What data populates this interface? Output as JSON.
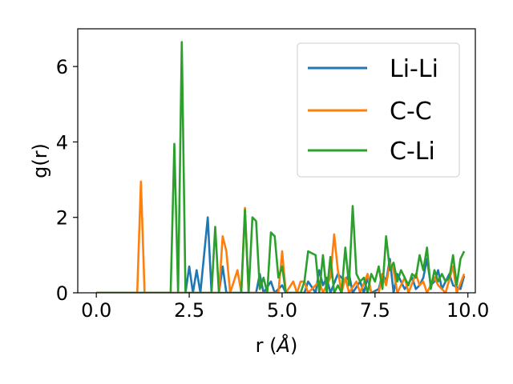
{
  "chart_data": {
    "type": "line",
    "xlabel_main": "r (",
    "xlabel_unit": "Å",
    "xlabel_end": ")",
    "ylabel": "g(r)",
    "xlim": [
      -0.5,
      10.2
    ],
    "ylim": [
      0,
      7
    ],
    "xticks": [
      0.0,
      2.5,
      5.0,
      7.5,
      10.0
    ],
    "xtick_labels": [
      "0.0",
      "2.5",
      "5.0",
      "7.5",
      "10.0"
    ],
    "yticks": [
      0,
      2,
      4,
      6
    ],
    "ytick_labels": [
      "0",
      "2",
      "4",
      "6"
    ],
    "grid": false,
    "legend_position": "upper right",
    "series": [
      {
        "name": "Li-Li",
        "color": "#1f77b4",
        "points": [
          [
            0,
            0
          ],
          [
            2.4,
            0
          ],
          [
            2.5,
            0.7
          ],
          [
            2.6,
            0
          ],
          [
            2.7,
            0.6
          ],
          [
            2.8,
            0
          ],
          [
            3.0,
            2.0
          ],
          [
            3.1,
            0
          ],
          [
            3.3,
            0
          ],
          [
            3.4,
            0.7
          ],
          [
            3.5,
            0
          ],
          [
            4.3,
            0
          ],
          [
            4.4,
            0.5
          ],
          [
            4.5,
            0
          ],
          [
            4.7,
            0.3
          ],
          [
            4.8,
            0
          ],
          [
            5.0,
            0.2
          ],
          [
            5.1,
            0
          ],
          [
            5.6,
            0
          ],
          [
            5.7,
            0.3
          ],
          [
            5.9,
            0
          ],
          [
            6.0,
            0.6
          ],
          [
            6.1,
            0.2
          ],
          [
            6.2,
            0.4
          ],
          [
            6.3,
            0
          ],
          [
            6.5,
            0.5
          ],
          [
            6.7,
            0.3
          ],
          [
            6.8,
            0.5
          ],
          [
            6.9,
            0
          ],
          [
            7.1,
            0.3
          ],
          [
            7.2,
            0
          ],
          [
            7.3,
            0.4
          ],
          [
            7.4,
            0
          ],
          [
            7.6,
            0.1
          ],
          [
            7.7,
            0.5
          ],
          [
            7.8,
            0.3
          ],
          [
            7.9,
            0.9
          ],
          [
            8.0,
            0
          ],
          [
            8.1,
            0.5
          ],
          [
            8.2,
            0.3
          ],
          [
            8.3,
            0.1
          ],
          [
            8.5,
            0.4
          ],
          [
            8.6,
            0.1
          ],
          [
            8.7,
            0.2
          ],
          [
            8.8,
            0.4
          ],
          [
            8.9,
            0.9
          ],
          [
            9.0,
            0.2
          ],
          [
            9.1,
            0.3
          ],
          [
            9.2,
            0.6
          ],
          [
            9.3,
            0.1
          ],
          [
            9.4,
            0.3
          ],
          [
            9.5,
            0.5
          ],
          [
            9.6,
            0.2
          ],
          [
            9.8,
            0.1
          ],
          [
            9.9,
            0.45
          ]
        ]
      },
      {
        "name": "C-C",
        "color": "#ff7f0e",
        "points": [
          [
            0,
            0
          ],
          [
            1.1,
            0
          ],
          [
            1.2,
            2.95
          ],
          [
            1.3,
            0
          ],
          [
            3.3,
            0
          ],
          [
            3.4,
            1.5
          ],
          [
            3.5,
            1.1
          ],
          [
            3.6,
            0
          ],
          [
            3.8,
            0.6
          ],
          [
            3.9,
            0
          ],
          [
            4.0,
            2.25
          ],
          [
            4.1,
            0
          ],
          [
            4.9,
            0
          ],
          [
            5.0,
            1.1
          ],
          [
            5.1,
            0
          ],
          [
            5.3,
            0.3
          ],
          [
            5.4,
            0
          ],
          [
            5.5,
            0.3
          ],
          [
            5.6,
            0.3
          ],
          [
            5.7,
            0
          ],
          [
            6.0,
            0.3
          ],
          [
            6.1,
            0
          ],
          [
            6.3,
            0.4
          ],
          [
            6.4,
            1.55
          ],
          [
            6.5,
            0.6
          ],
          [
            6.6,
            0
          ],
          [
            6.7,
            0.4
          ],
          [
            6.8,
            0
          ],
          [
            7.0,
            0.3
          ],
          [
            7.1,
            0
          ],
          [
            7.3,
            0.5
          ],
          [
            7.4,
            0
          ],
          [
            7.6,
            0
          ],
          [
            7.7,
            0.5
          ],
          [
            7.8,
            0.2
          ],
          [
            7.9,
            0.8
          ],
          [
            8.0,
            0.6
          ],
          [
            8.1,
            0
          ],
          [
            8.3,
            0.4
          ],
          [
            8.4,
            0
          ],
          [
            8.6,
            0.5
          ],
          [
            8.7,
            0.2
          ],
          [
            8.8,
            0.3
          ],
          [
            8.9,
            0
          ],
          [
            9.1,
            0.4
          ],
          [
            9.2,
            0.2
          ],
          [
            9.3,
            0.1
          ],
          [
            9.4,
            0
          ],
          [
            9.6,
            0.7
          ],
          [
            9.7,
            0
          ],
          [
            9.9,
            0.5
          ]
        ]
      },
      {
        "name": "C-Li",
        "color": "#2ca02c",
        "points": [
          [
            0,
            0
          ],
          [
            2.0,
            0
          ],
          [
            2.1,
            3.95
          ],
          [
            2.2,
            0
          ],
          [
            2.3,
            6.65
          ],
          [
            2.4,
            0
          ],
          [
            3.1,
            0
          ],
          [
            3.2,
            1.75
          ],
          [
            3.3,
            0
          ],
          [
            3.9,
            0
          ],
          [
            4.0,
            2.2
          ],
          [
            4.1,
            0
          ],
          [
            4.2,
            2.0
          ],
          [
            4.3,
            1.9
          ],
          [
            4.4,
            0.1
          ],
          [
            4.5,
            0.4
          ],
          [
            4.6,
            0
          ],
          [
            4.7,
            1.6
          ],
          [
            4.8,
            1.5
          ],
          [
            4.9,
            0.4
          ],
          [
            5.0,
            0.7
          ],
          [
            5.1,
            0
          ],
          [
            5.5,
            0
          ],
          [
            5.6,
            0.3
          ],
          [
            5.7,
            1.1
          ],
          [
            5.8,
            1.05
          ],
          [
            5.9,
            1.0
          ],
          [
            6.0,
            0
          ],
          [
            6.1,
            1.0
          ],
          [
            6.2,
            0
          ],
          [
            6.3,
            0.95
          ],
          [
            6.4,
            0
          ],
          [
            6.5,
            0.2
          ],
          [
            6.6,
            0
          ],
          [
            6.7,
            1.2
          ],
          [
            6.8,
            0.2
          ],
          [
            6.9,
            2.3
          ],
          [
            7.0,
            0.5
          ],
          [
            7.1,
            0.3
          ],
          [
            7.2,
            0.4
          ],
          [
            7.3,
            0
          ],
          [
            7.4,
            0.5
          ],
          [
            7.5,
            0.3
          ],
          [
            7.6,
            0.7
          ],
          [
            7.7,
            0.1
          ],
          [
            7.8,
            1.5
          ],
          [
            7.9,
            0.6
          ],
          [
            8.0,
            0.8
          ],
          [
            8.1,
            0.3
          ],
          [
            8.2,
            0.6
          ],
          [
            8.3,
            0.4
          ],
          [
            8.4,
            0.2
          ],
          [
            8.5,
            0.5
          ],
          [
            8.6,
            0.4
          ],
          [
            8.7,
            1.0
          ],
          [
            8.8,
            0.6
          ],
          [
            8.9,
            1.2
          ],
          [
            9.0,
            0.1
          ],
          [
            9.1,
            0.6
          ],
          [
            9.2,
            0.3
          ],
          [
            9.3,
            0.5
          ],
          [
            9.4,
            0.3
          ],
          [
            9.5,
            0.4
          ],
          [
            9.6,
            1.0
          ],
          [
            9.7,
            0.2
          ],
          [
            9.8,
            0.9
          ],
          [
            9.9,
            1.1
          ]
        ]
      }
    ]
  }
}
